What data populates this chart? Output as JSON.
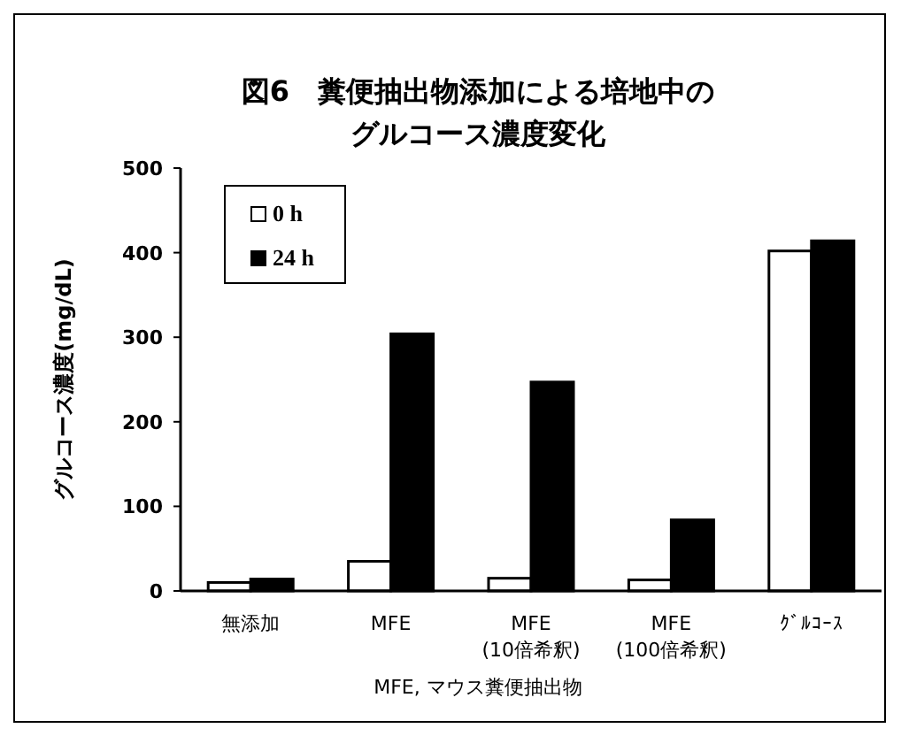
{
  "chart_data": {
    "type": "bar",
    "title": "図6　糞便抽出物添加による培地中のグルコース濃度変化",
    "xlabel": "MFE, マウス糞便抽出物",
    "ylabel": "グルコース濃度(mg/dL)",
    "categories": [
      "無添加",
      "MFE",
      "MFE\n(10倍希釈)",
      "MFE\n(100倍希釈)",
      "ｸﾞﾙｺｰｽ"
    ],
    "series": [
      {
        "name": "0 h",
        "color": "#ffffff",
        "values": [
          10,
          35,
          15,
          13,
          402
        ]
      },
      {
        "name": "24 h",
        "color": "#000000",
        "values": [
          14,
          304,
          247,
          84,
          414
        ]
      }
    ],
    "ylim": [
      0,
      500
    ],
    "yticks": [
      0,
      100,
      200,
      300,
      400,
      500
    ],
    "grid": false,
    "legend": "top left"
  }
}
